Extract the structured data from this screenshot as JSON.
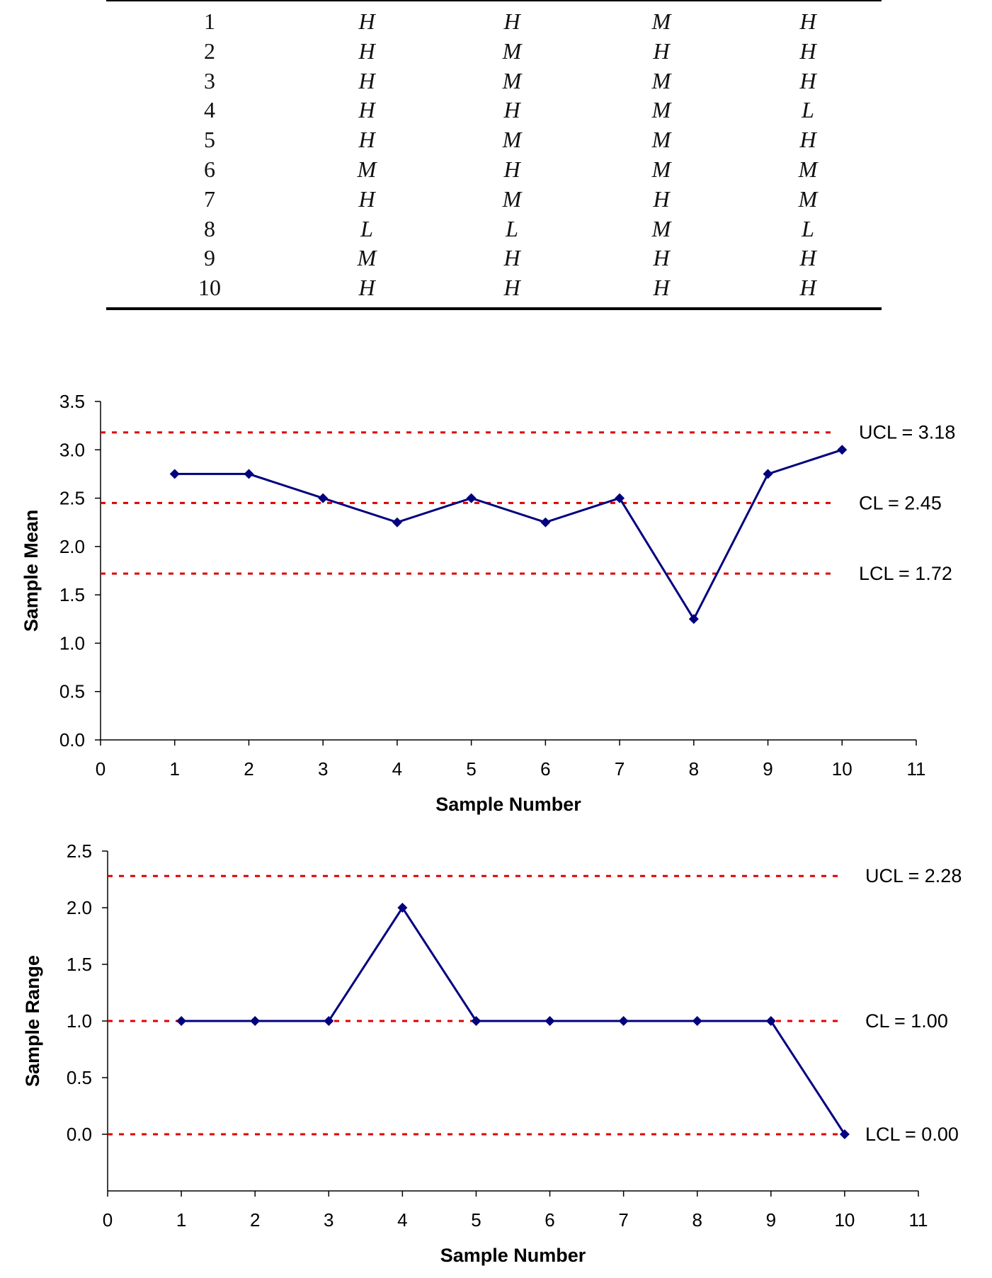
{
  "table": {
    "rows": [
      [
        "1",
        "H",
        "H",
        "M",
        "H"
      ],
      [
        "2",
        "H",
        "M",
        "H",
        "H"
      ],
      [
        "3",
        "H",
        "M",
        "M",
        "H"
      ],
      [
        "4",
        "H",
        "H",
        "M",
        "L"
      ],
      [
        "5",
        "H",
        "M",
        "M",
        "H"
      ],
      [
        "6",
        "M",
        "H",
        "M",
        "M"
      ],
      [
        "7",
        "H",
        "M",
        "H",
        "M"
      ],
      [
        "8",
        "L",
        "L",
        "M",
        "L"
      ],
      [
        "9",
        "M",
        "H",
        "H",
        "H"
      ],
      [
        "10",
        "H",
        "H",
        "H",
        "H"
      ]
    ]
  },
  "colors": {
    "series": "#00007f",
    "control_line": "#e00000",
    "axis": "#000000"
  },
  "chart_data": [
    {
      "type": "line",
      "xlabel": "Sample Number",
      "ylabel": "Sample Mean",
      "xlim": [
        0,
        11
      ],
      "ylim": [
        0,
        3.5
      ],
      "x_ticks": [
        "0",
        "1",
        "2",
        "3",
        "4",
        "5",
        "6",
        "7",
        "8",
        "9",
        "10",
        "11"
      ],
      "y_ticks": [
        "0.0",
        "0.5",
        "1.0",
        "1.5",
        "2.0",
        "2.5",
        "3.0",
        "3.5"
      ],
      "grid": false,
      "legend": "none",
      "x": [
        1,
        2,
        3,
        4,
        5,
        6,
        7,
        8,
        9,
        10
      ],
      "values": [
        2.75,
        2.75,
        2.5,
        2.25,
        2.5,
        2.25,
        2.5,
        1.25,
        2.75,
        3.0
      ],
      "marker": "diamond",
      "control_lines": [
        {
          "label": "UCL = 3.18",
          "value": 3.18
        },
        {
          "label": "CL = 2.45",
          "value": 2.45
        },
        {
          "label": "LCL = 1.72",
          "value": 1.72
        }
      ]
    },
    {
      "type": "line",
      "xlabel": "Sample Number",
      "ylabel": "Sample Range",
      "xlim": [
        0,
        11
      ],
      "ylim": [
        -0.5,
        2.5
      ],
      "x_ticks": [
        "0",
        "1",
        "2",
        "3",
        "4",
        "5",
        "6",
        "7",
        "8",
        "9",
        "10",
        "11"
      ],
      "y_ticks": [
        "0.0",
        "0.5",
        "1.0",
        "1.5",
        "2.0",
        "2.5"
      ],
      "grid": false,
      "legend": "none",
      "x": [
        1,
        2,
        3,
        4,
        5,
        6,
        7,
        8,
        9,
        10
      ],
      "values": [
        1.0,
        1.0,
        1.0,
        2.0,
        1.0,
        1.0,
        1.0,
        1.0,
        1.0,
        0.0
      ],
      "marker": "diamond",
      "control_lines": [
        {
          "label": "UCL = 2.28",
          "value": 2.28
        },
        {
          "label": "CL = 1.00",
          "value": 1.0
        },
        {
          "label": "LCL = 0.00",
          "value": 0.0
        }
      ]
    }
  ]
}
